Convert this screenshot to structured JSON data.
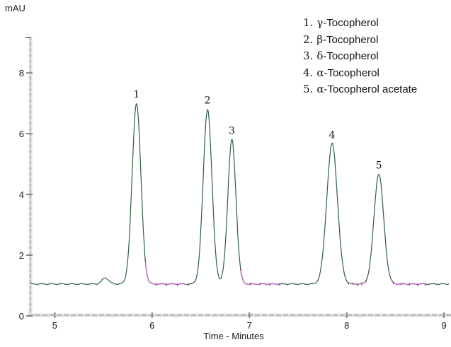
{
  "chart_data": {
    "type": "line",
    "title": "",
    "ylabel": "mAU",
    "xlabel": "Time - Minutes",
    "x_range": [
      4.75,
      9.05
    ],
    "y_range": [
      0,
      9.19
    ],
    "x_ticks": [
      5,
      6,
      7,
      8,
      9
    ],
    "y_ticks": [
      0,
      2,
      4,
      6,
      8
    ],
    "baseline_mAU": 1.05,
    "noise_amp_mAU": 0.013,
    "peaks": [
      {
        "label": "1",
        "rt_min": 5.84,
        "apex_mAU": 7.0,
        "sigma_min": 0.045
      },
      {
        "label": "2",
        "rt_min": 6.57,
        "apex_mAU": 6.8,
        "sigma_min": 0.045
      },
      {
        "label": "3",
        "rt_min": 6.82,
        "apex_mAU": 5.8,
        "sigma_min": 0.042
      },
      {
        "label": "4",
        "rt_min": 7.85,
        "apex_mAU": 5.67,
        "sigma_min": 0.055
      },
      {
        "label": "5",
        "rt_min": 8.33,
        "apex_mAU": 4.67,
        "sigma_min": 0.05
      }
    ],
    "artifact_bump": {
      "rt_min": 5.52,
      "apex_mAU": 1.25,
      "sigma_min": 0.035
    },
    "integration_segments_min": [
      [
        5.93,
        6.37
      ],
      [
        6.91,
        7.31
      ],
      [
        8.02,
        8.2
      ],
      [
        8.48,
        8.81
      ]
    ],
    "colors": {
      "trace": "#2f5f40",
      "integration": "#c06ec0",
      "integration_mark": "#3c3c3c",
      "axis_light": "#e2e2e2",
      "axis_dash": "#b5b5b5",
      "axis_major": "#858585",
      "text": "#1c1c1c",
      "peak_label": "#111111"
    }
  },
  "legend": {
    "items": [
      {
        "num": "1.",
        "greek": "γ",
        "rest": "-Tocopherol"
      },
      {
        "num": "2.",
        "greek": "β",
        "rest": "-Tocopherol"
      },
      {
        "num": "3.",
        "greek": "δ",
        "rest": "-Tocopherol"
      },
      {
        "num": "4.",
        "greek": "α",
        "rest": "-Tocopherol"
      },
      {
        "num": "5.",
        "greek": "α",
        "rest": "-Tocopherol acetate"
      }
    ]
  }
}
